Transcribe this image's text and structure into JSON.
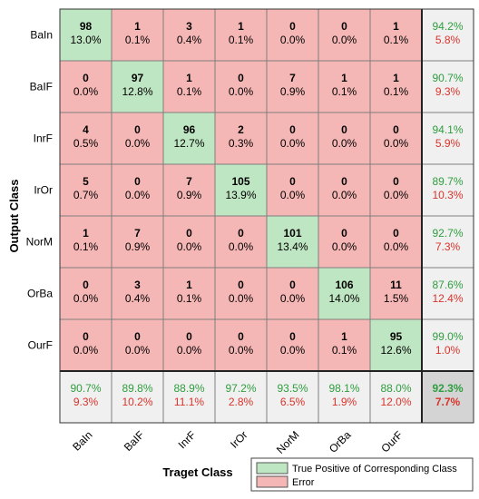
{
  "chart_data": {
    "type": "heatmap",
    "title": "",
    "xlabel": "Traget Class",
    "ylabel": "Output Class",
    "rows": [
      "BaIn",
      "BaIF",
      "InrF",
      "IrOr",
      "NorM",
      "OrBa",
      "OurF"
    ],
    "cols": [
      "BaIn",
      "BaIF",
      "InrF",
      "IrOr",
      "NorM",
      "OrBa",
      "OurF"
    ],
    "counts": [
      [
        98,
        1,
        3,
        1,
        0,
        0,
        1
      ],
      [
        0,
        97,
        1,
        0,
        7,
        1,
        1
      ],
      [
        4,
        0,
        96,
        2,
        0,
        0,
        0
      ],
      [
        5,
        0,
        7,
        105,
        0,
        0,
        0
      ],
      [
        1,
        7,
        0,
        0,
        101,
        0,
        0
      ],
      [
        0,
        3,
        1,
        0,
        0,
        106,
        11
      ],
      [
        0,
        0,
        0,
        0,
        0,
        1,
        95
      ]
    ],
    "percents": [
      [
        "13.0%",
        "0.1%",
        "0.4%",
        "0.1%",
        "0.0%",
        "0.0%",
        "0.1%"
      ],
      [
        "0.0%",
        "12.8%",
        "0.1%",
        "0.0%",
        "0.9%",
        "0.1%",
        "0.1%"
      ],
      [
        "0.5%",
        "0.0%",
        "12.7%",
        "0.3%",
        "0.0%",
        "0.0%",
        "0.0%"
      ],
      [
        "0.7%",
        "0.0%",
        "0.9%",
        "13.9%",
        "0.0%",
        "0.0%",
        "0.0%"
      ],
      [
        "0.1%",
        "0.9%",
        "0.0%",
        "0.0%",
        "13.4%",
        "0.0%",
        "0.0%"
      ],
      [
        "0.0%",
        "0.4%",
        "0.1%",
        "0.0%",
        "0.0%",
        "14.0%",
        "1.5%"
      ],
      [
        "0.0%",
        "0.0%",
        "0.0%",
        "0.0%",
        "0.0%",
        "0.1%",
        "12.6%"
      ]
    ],
    "row_summary": [
      {
        "correct": "94.2%",
        "error": "5.8%"
      },
      {
        "correct": "90.7%",
        "error": "9.3%"
      },
      {
        "correct": "94.1%",
        "error": "5.9%"
      },
      {
        "correct": "89.7%",
        "error": "10.3%"
      },
      {
        "correct": "92.7%",
        "error": "7.3%"
      },
      {
        "correct": "87.6%",
        "error": "12.4%"
      },
      {
        "correct": "99.0%",
        "error": "1.0%"
      }
    ],
    "col_summary": [
      {
        "correct": "90.7%",
        "error": "9.3%"
      },
      {
        "correct": "89.8%",
        "error": "10.2%"
      },
      {
        "correct": "88.9%",
        "error": "11.1%"
      },
      {
        "correct": "97.2%",
        "error": "2.8%"
      },
      {
        "correct": "93.5%",
        "error": "6.5%"
      },
      {
        "correct": "98.1%",
        "error": "1.9%"
      },
      {
        "correct": "88.0%",
        "error": "12.0%"
      }
    ],
    "overall": {
      "correct": "92.3%",
      "error": "7.7%"
    },
    "legend": {
      "placement": "bottom-right",
      "items": [
        {
          "label": "True Positive of Corresponding Class",
          "color": "#bfe6c2"
        },
        {
          "label": "Error",
          "color": "#f5b7b5"
        }
      ]
    },
    "colors": {
      "correct_cell": "#bfe6c2",
      "error_cell": "#f5b7b5",
      "summary_cell": "#f0f0f0",
      "overall_cell": "#d4d4d4",
      "summary_green": "#2e9e3e",
      "summary_red": "#d9342b"
    }
  }
}
